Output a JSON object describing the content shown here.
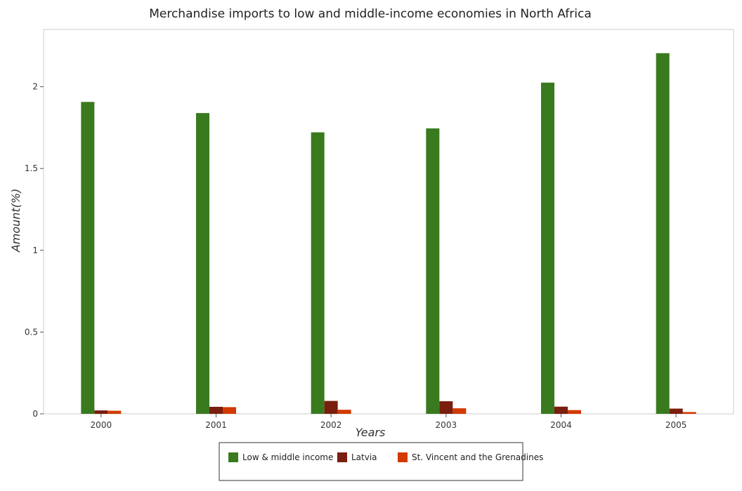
{
  "chart_data": {
    "type": "bar",
    "title": "Merchandise imports to low and middle-income economies in North Africa",
    "xlabel": "Years",
    "ylabel": "Amount(%)",
    "categories": [
      "2000",
      "2001",
      "2002",
      "2003",
      "2004",
      "2005"
    ],
    "ylim": [
      0,
      2.35
    ],
    "yticks": [
      0,
      0.5,
      1,
      1.5,
      2
    ],
    "ytick_labels": [
      "0",
      "0.5",
      "1",
      "1.5",
      "2"
    ],
    "grid": false,
    "legend_position": "bottom-center",
    "series": [
      {
        "name": "Low & middle income",
        "color": "#3a7a1e",
        "values": [
          1.907,
          1.839,
          1.721,
          1.745,
          2.025,
          2.205
        ]
      },
      {
        "name": "Latvia",
        "color": "#7a1e0e",
        "values": [
          0.021,
          0.043,
          0.079,
          0.077,
          0.044,
          0.032
        ]
      },
      {
        "name": "St. Vincent and the Grenadines",
        "color": "#d23a00",
        "values": [
          0.019,
          0.041,
          0.025,
          0.034,
          0.023,
          0.011
        ]
      }
    ]
  }
}
